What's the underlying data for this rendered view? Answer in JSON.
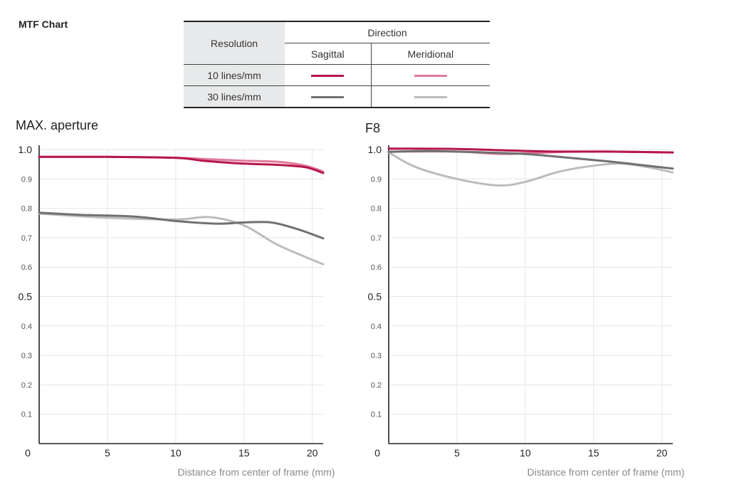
{
  "page": {
    "title": "MTF Chart"
  },
  "legend": {
    "resolution_header": "Resolution",
    "direction_header": "Direction",
    "sagittal_label": "Sagittal",
    "meridional_label": "Meridional",
    "rows": [
      {
        "label": "10 lines/mm",
        "sagittal_color": "#b5174a",
        "meridional_color": "#e07b98"
      },
      {
        "label": "30 lines/mm",
        "sagittal_color": "#707070",
        "meridional_color": "#bcbcbc"
      }
    ]
  },
  "colors": {
    "s10": "#b5174a",
    "m10": "#e07b98",
    "s30": "#707070",
    "m30": "#bcbcbc",
    "grid": "#e6e6e6",
    "axis": "#222222",
    "tick_small": "#555555",
    "xlabel": "#8a8a8a"
  },
  "chart_data": [
    {
      "type": "line",
      "title": "MAX. aperture",
      "xlabel": "Distance from center of frame (mm)",
      "ylabel": "",
      "xlim": [
        0,
        20.8
      ],
      "ylim": [
        0,
        1.0
      ],
      "x_ticks": [
        "0",
        "5",
        "10",
        "15",
        "20"
      ],
      "y_ticks": [
        "0.1",
        "0.2",
        "0.3",
        "0.4",
        "0.5",
        "0.6",
        "0.7",
        "0.8",
        "0.9",
        "1.0"
      ],
      "series": [
        {
          "name": "10 lines/mm Meridional",
          "key": "m10",
          "x": [
            0,
            5,
            10,
            12,
            15,
            17.5,
            19.5,
            20.8
          ],
          "y": [
            0.975,
            0.975,
            0.972,
            0.968,
            0.962,
            0.958,
            0.945,
            0.925
          ]
        },
        {
          "name": "10 lines/mm Sagittal",
          "key": "s10",
          "x": [
            0,
            5,
            10,
            12,
            15,
            17.5,
            19.5,
            20.8
          ],
          "y": [
            0.975,
            0.975,
            0.972,
            0.962,
            0.952,
            0.948,
            0.94,
            0.92
          ]
        },
        {
          "name": "30 lines/mm Meridional",
          "key": "m30",
          "x": [
            0,
            5,
            10,
            12.5,
            15,
            17.5,
            20.8
          ],
          "y": [
            0.782,
            0.768,
            0.762,
            0.77,
            0.742,
            0.675,
            0.61
          ]
        },
        {
          "name": "30 lines/mm Sagittal",
          "key": "s30",
          "x": [
            0,
            3,
            7,
            10,
            13,
            15,
            17,
            19,
            20.8
          ],
          "y": [
            0.785,
            0.778,
            0.772,
            0.757,
            0.748,
            0.752,
            0.752,
            0.728,
            0.698
          ]
        }
      ]
    },
    {
      "type": "line",
      "title": "F8",
      "xlabel": "Distance from center of frame (mm)",
      "ylabel": "",
      "xlim": [
        0,
        20.8
      ],
      "ylim": [
        0,
        1.0
      ],
      "x_ticks": [
        "0",
        "5",
        "10",
        "15",
        "20"
      ],
      "y_ticks": [
        "0.1",
        "0.2",
        "0.3",
        "0.4",
        "0.5",
        "0.6",
        "0.7",
        "0.8",
        "0.9",
        "1.0"
      ],
      "series": [
        {
          "name": "10 lines/mm Meridional",
          "key": "m10",
          "x": [
            0,
            5,
            8,
            10,
            13,
            16,
            20.8
          ],
          "y": [
            0.993,
            0.993,
            0.985,
            0.987,
            0.992,
            0.993,
            0.99
          ]
        },
        {
          "name": "10 lines/mm Sagittal",
          "key": "s10",
          "x": [
            0,
            5,
            10,
            13,
            16,
            20.8
          ],
          "y": [
            1.003,
            1.002,
            0.995,
            0.993,
            0.993,
            0.99
          ]
        },
        {
          "name": "30 lines/mm Meridional",
          "key": "m30",
          "x": [
            0,
            2,
            5,
            8,
            10,
            12.5,
            15,
            17,
            19,
            20.8
          ],
          "y": [
            0.99,
            0.94,
            0.9,
            0.878,
            0.89,
            0.925,
            0.945,
            0.952,
            0.94,
            0.922
          ]
        },
        {
          "name": "30 lines/mm Sagittal",
          "key": "s30",
          "x": [
            0,
            3,
            7,
            10,
            13,
            16,
            18,
            20.8
          ],
          "y": [
            0.992,
            0.995,
            0.99,
            0.985,
            0.973,
            0.96,
            0.95,
            0.935
          ]
        }
      ]
    }
  ]
}
